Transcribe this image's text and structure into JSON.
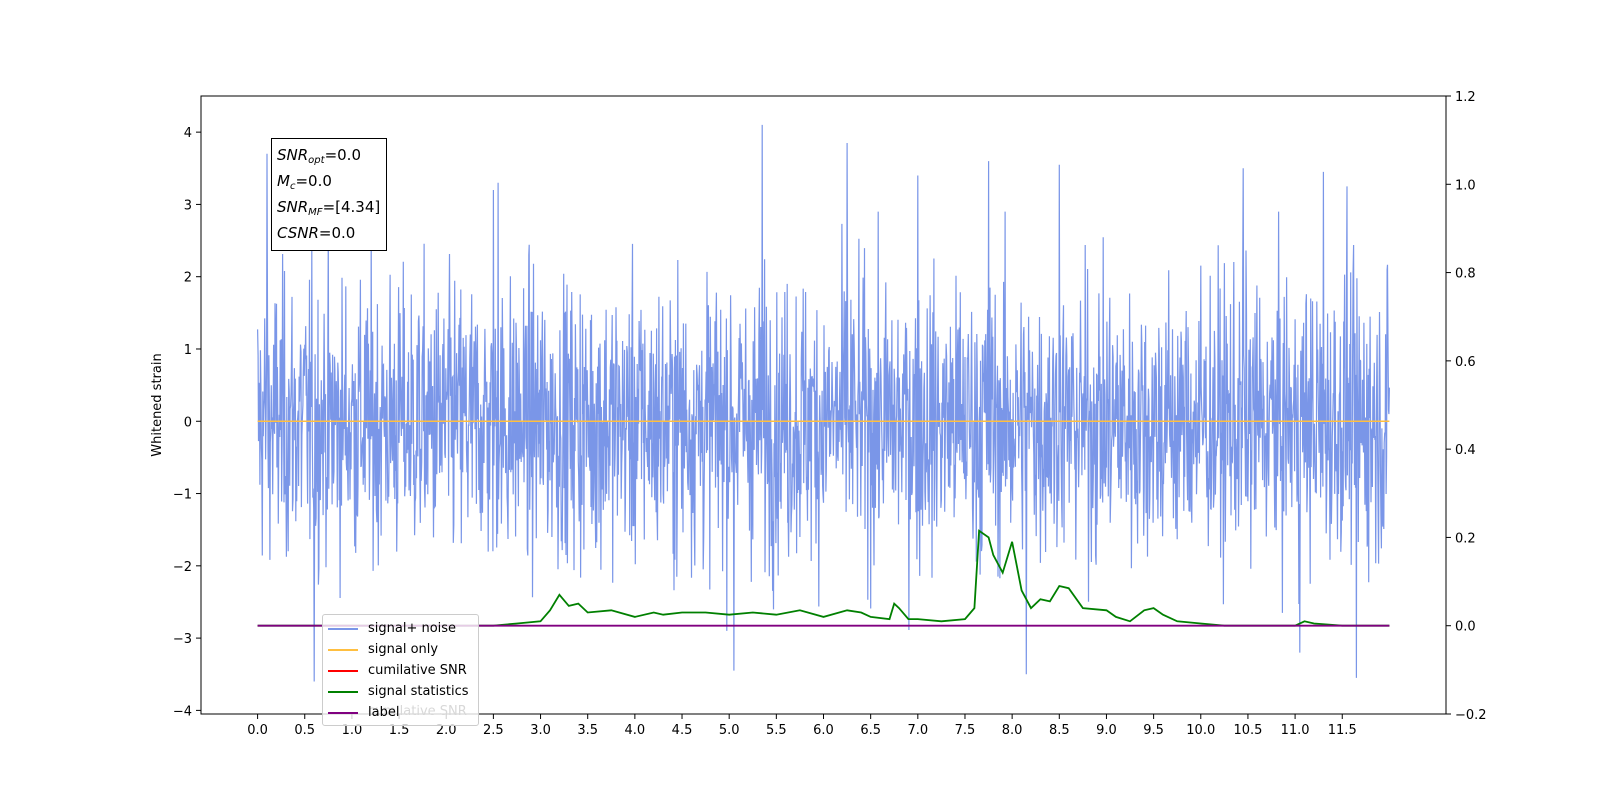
{
  "chart_data": {
    "type": "line",
    "ylabel": "Whitened strain",
    "xlim": [
      -0.6,
      12.6
    ],
    "ylim": [
      -4.05,
      4.5
    ],
    "y2lim": [
      -0.2,
      1.2
    ],
    "x_ticks": [
      "0.0",
      "0.5",
      "1.0",
      "1.5",
      "2.0",
      "2.5",
      "3.0",
      "3.5",
      "4.0",
      "4.5",
      "5.0",
      "5.5",
      "6.0",
      "6.5",
      "7.0",
      "7.5",
      "8.0",
      "8.5",
      "9.0",
      "9.5",
      "10.0",
      "10.5",
      "11.0",
      "11.5"
    ],
    "y_ticks": [
      "4",
      "3",
      "2",
      "1",
      "0",
      "−1",
      "−2",
      "−3",
      "−4"
    ],
    "y2_ticks": [
      "1.2",
      "1.0",
      "0.8",
      "0.6",
      "0.4",
      "0.2",
      "0.0",
      "−0.2"
    ],
    "grid": false,
    "legend_position": "lower-left",
    "annotation": {
      "snr_opt": "=0.0",
      "mc": "=0.0",
      "snr_mf": "=[4.34]",
      "csnr": "=0.0"
    },
    "series": [
      {
        "name": "signal+ noise",
        "color": "#7a96e8",
        "axis": "left",
        "x_range": [
          0.0,
          12.0
        ],
        "description_values": {
          "typical_band": [
            -2.2,
            2.2
          ],
          "peaks": [
            {
              "x": 0.1,
              "y": 3.7
            },
            {
              "x": 0.6,
              "y": 3.0
            },
            {
              "x": 2.5,
              "y": 3.2
            },
            {
              "x": 2.55,
              "y": 3.3
            },
            {
              "x": 5.35,
              "y": 4.1
            },
            {
              "x": 6.25,
              "y": 3.85
            },
            {
              "x": 7.0,
              "y": 3.4
            },
            {
              "x": 7.75,
              "y": 3.6
            },
            {
              "x": 8.5,
              "y": 3.55
            },
            {
              "x": 10.45,
              "y": 3.5
            },
            {
              "x": 11.3,
              "y": 3.45
            },
            {
              "x": 11.55,
              "y": 3.25
            },
            {
              "x": 0.6,
              "y": -3.6
            },
            {
              "x": 5.05,
              "y": -3.45
            },
            {
              "x": 8.15,
              "y": -3.5
            },
            {
              "x": 11.65,
              "y": -3.55
            },
            {
              "x": 11.05,
              "y": -3.2
            }
          ]
        }
      },
      {
        "name": "signal only",
        "color": "#ffbf40",
        "axis": "left",
        "x": [
          0.0,
          12.0
        ],
        "y": [
          0.0,
          0.0
        ]
      },
      {
        "name": "cumilative SNR",
        "color": "#ff0000",
        "axis": "right",
        "x": [
          0.0,
          12.0
        ],
        "y": [
          0.0,
          0.0
        ]
      },
      {
        "name": "signal statistics",
        "color": "#008000",
        "axis": "right",
        "x": [
          0.0,
          0.5,
          1.0,
          1.5,
          2.0,
          2.5,
          2.75,
          3.0,
          3.1,
          3.2,
          3.3,
          3.4,
          3.5,
          3.75,
          4.0,
          4.2,
          4.3,
          4.5,
          4.75,
          5.0,
          5.25,
          5.5,
          5.75,
          6.0,
          6.25,
          6.4,
          6.5,
          6.7,
          6.75,
          6.8,
          6.9,
          7.0,
          7.25,
          7.5,
          7.6,
          7.65,
          7.75,
          7.8,
          7.9,
          8.0,
          8.1,
          8.2,
          8.3,
          8.4,
          8.5,
          8.6,
          8.75,
          9.0,
          9.1,
          9.25,
          9.4,
          9.5,
          9.6,
          9.75,
          10.0,
          10.25,
          10.5,
          10.75,
          11.0,
          11.1,
          11.2,
          11.5,
          12.0
        ],
        "y": [
          0.0,
          0.0,
          0.0,
          0.0,
          0.0,
          0.0,
          0.005,
          0.01,
          0.035,
          0.07,
          0.045,
          0.05,
          0.03,
          0.035,
          0.02,
          0.03,
          0.025,
          0.03,
          0.03,
          0.025,
          0.03,
          0.025,
          0.035,
          0.02,
          0.035,
          0.03,
          0.02,
          0.015,
          0.05,
          0.04,
          0.015,
          0.015,
          0.01,
          0.015,
          0.04,
          0.215,
          0.2,
          0.16,
          0.12,
          0.19,
          0.08,
          0.04,
          0.06,
          0.055,
          0.09,
          0.085,
          0.04,
          0.035,
          0.02,
          0.01,
          0.035,
          0.04,
          0.025,
          0.01,
          0.005,
          0.0,
          0.0,
          0.0,
          0.0,
          0.01,
          0.005,
          0.0,
          0.0
        ]
      },
      {
        "name": "label",
        "color": "#800080",
        "axis": "right",
        "x": [
          0.0,
          12.0
        ],
        "y": [
          0.0,
          0.0
        ]
      }
    ],
    "legend_overlay_text": "cumilative SNR"
  }
}
